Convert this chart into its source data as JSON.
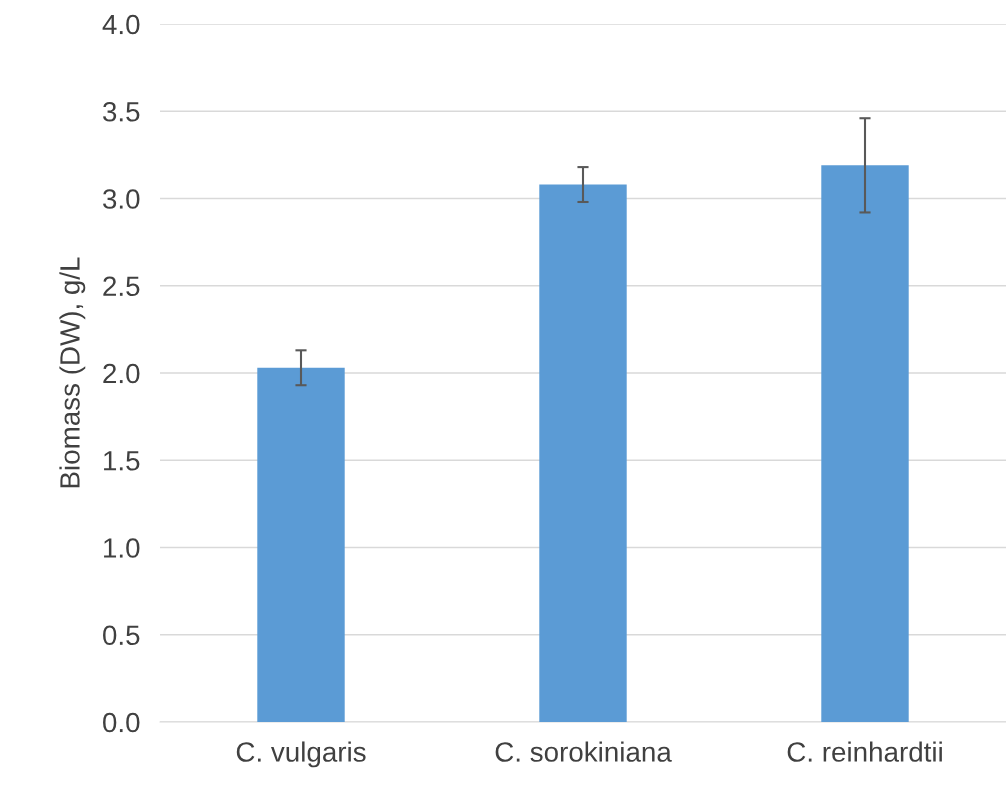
{
  "chart_data": {
    "type": "bar",
    "ylabel": "Biomass (DW), g/L",
    "categories": [
      "C. vulgaris",
      "C. sorokiniana",
      "C. reinhardtii"
    ],
    "values": [
      2.03,
      3.08,
      3.19
    ],
    "errors": [
      0.1,
      0.1,
      0.27
    ],
    "color": "#5b9bd5",
    "ylim": [
      0,
      4
    ],
    "yticks": [
      {
        "value": 0,
        "label": "0.0"
      },
      {
        "value": 0.5,
        "label": "0.5"
      },
      {
        "value": 1,
        "label": "1.0"
      },
      {
        "value": 1.5,
        "label": "1.5"
      },
      {
        "value": 2,
        "label": "2.0"
      },
      {
        "value": 2.5,
        "label": "2.5"
      },
      {
        "value": 3,
        "label": "3.0"
      },
      {
        "value": 3.5,
        "label": "3.5"
      },
      {
        "value": 4,
        "label": "4.0"
      }
    ],
    "grid": "y"
  }
}
